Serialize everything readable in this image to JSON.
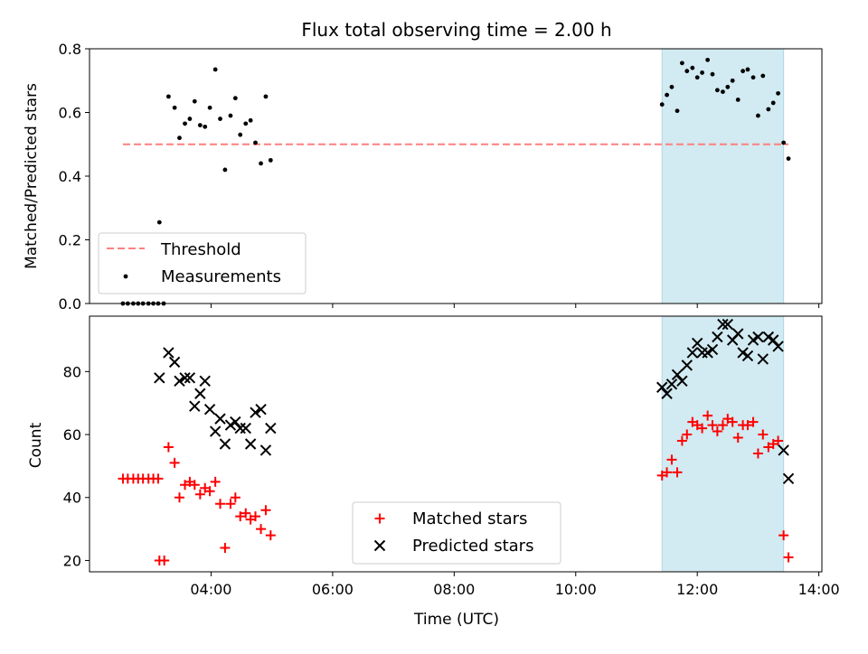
{
  "figure": {
    "title": "Flux total observing time = 2.00 h",
    "xlabel": "Time (UTC)",
    "highlight_color": "#add8e6",
    "threshold_color": "#ff7f7f",
    "matched_color": "#ff0000",
    "predicted_color": "#000000"
  },
  "chart_data": [
    {
      "type": "scatter",
      "panel": "top",
      "title": "Flux total observing time = 2.00 h",
      "xlabel": "",
      "ylabel": "Matched/Predicted stars",
      "x_unit": "hours UTC",
      "xlim": [
        2.0,
        14.05
      ],
      "ylim": [
        0.0,
        0.8
      ],
      "x_ticks": [
        4,
        6,
        8,
        10,
        12,
        14
      ],
      "y_ticks": [
        0.0,
        0.2,
        0.4,
        0.6,
        0.8
      ],
      "y_tick_labels": [
        "0.0",
        "0.2",
        "0.4",
        "0.6",
        "0.8"
      ],
      "highlight_span": [
        11.42,
        13.42
      ],
      "legend": {
        "position": "lower-left",
        "entries": [
          "Threshold",
          "Measurements"
        ]
      },
      "series": [
        {
          "name": "Threshold",
          "kind": "hline",
          "y": 0.5,
          "x_range": [
            2.55,
            13.5
          ],
          "color": "#ff7f7f",
          "style": "dashed"
        },
        {
          "name": "Measurements",
          "kind": "scatter",
          "marker": "dot",
          "color": "#000000",
          "points": [
            [
              2.55,
              0.0
            ],
            [
              2.63,
              0.0
            ],
            [
              2.72,
              0.0
            ],
            [
              2.8,
              0.0
            ],
            [
              2.88,
              0.0
            ],
            [
              2.97,
              0.0
            ],
            [
              3.05,
              0.0
            ],
            [
              3.13,
              0.0
            ],
            [
              3.22,
              0.0
            ],
            [
              3.15,
              0.255
            ],
            [
              3.3,
              0.65
            ],
            [
              3.4,
              0.615
            ],
            [
              3.48,
              0.52
            ],
            [
              3.57,
              0.565
            ],
            [
              3.65,
              0.58
            ],
            [
              3.73,
              0.635
            ],
            [
              3.82,
              0.56
            ],
            [
              3.9,
              0.555
            ],
            [
              3.98,
              0.615
            ],
            [
              4.07,
              0.735
            ],
            [
              4.15,
              0.58
            ],
            [
              4.23,
              0.42
            ],
            [
              4.32,
              0.59
            ],
            [
              4.4,
              0.645
            ],
            [
              4.48,
              0.53
            ],
            [
              4.57,
              0.565
            ],
            [
              4.65,
              0.575
            ],
            [
              4.73,
              0.505
            ],
            [
              4.82,
              0.44
            ],
            [
              4.9,
              0.65
            ],
            [
              4.98,
              0.45
            ],
            [
              11.42,
              0.625
            ],
            [
              11.5,
              0.655
            ],
            [
              11.58,
              0.68
            ],
            [
              11.67,
              0.605
            ],
            [
              11.75,
              0.755
            ],
            [
              11.83,
              0.73
            ],
            [
              11.92,
              0.74
            ],
            [
              12.0,
              0.71
            ],
            [
              12.08,
              0.725
            ],
            [
              12.17,
              0.765
            ],
            [
              12.25,
              0.72
            ],
            [
              12.33,
              0.67
            ],
            [
              12.42,
              0.665
            ],
            [
              12.5,
              0.68
            ],
            [
              12.58,
              0.7
            ],
            [
              12.67,
              0.64
            ],
            [
              12.75,
              0.73
            ],
            [
              12.83,
              0.735
            ],
            [
              12.92,
              0.71
            ],
            [
              13.0,
              0.59
            ],
            [
              13.08,
              0.715
            ],
            [
              13.17,
              0.61
            ],
            [
              13.25,
              0.63
            ],
            [
              13.33,
              0.66
            ],
            [
              13.42,
              0.505
            ],
            [
              13.5,
              0.455
            ]
          ]
        }
      ]
    },
    {
      "type": "scatter",
      "panel": "bottom",
      "title": "",
      "xlabel": "Time (UTC)",
      "ylabel": "Count",
      "x_unit": "hours UTC",
      "xlim": [
        2.0,
        14.05
      ],
      "ylim": [
        16.4,
        97.6
      ],
      "x_ticks": [
        4,
        6,
        8,
        10,
        12,
        14
      ],
      "x_tick_labels": [
        "04:00",
        "06:00",
        "08:00",
        "10:00",
        "12:00",
        "14:00"
      ],
      "y_ticks": [
        20,
        40,
        60,
        80
      ],
      "y_tick_labels": [
        "20",
        "40",
        "60",
        "80"
      ],
      "highlight_span": [
        11.42,
        13.42
      ],
      "legend": {
        "position": "lower-center",
        "entries": [
          "Matched stars",
          "Predicted stars"
        ]
      },
      "series": [
        {
          "name": "Matched stars",
          "kind": "scatter",
          "marker": "plus",
          "color": "#ff0000",
          "points": [
            [
              2.55,
              46
            ],
            [
              2.63,
              46
            ],
            [
              2.72,
              46
            ],
            [
              2.8,
              46
            ],
            [
              2.88,
              46
            ],
            [
              2.97,
              46
            ],
            [
              3.05,
              46
            ],
            [
              3.13,
              46
            ],
            [
              3.15,
              20
            ],
            [
              3.23,
              20
            ],
            [
              3.3,
              56
            ],
            [
              3.4,
              51
            ],
            [
              3.48,
              40
            ],
            [
              3.57,
              44
            ],
            [
              3.65,
              45
            ],
            [
              3.73,
              44
            ],
            [
              3.82,
              41
            ],
            [
              3.9,
              43
            ],
            [
              3.98,
              42
            ],
            [
              4.07,
              45
            ],
            [
              4.15,
              38
            ],
            [
              4.23,
              24
            ],
            [
              4.32,
              38
            ],
            [
              4.4,
              40
            ],
            [
              4.48,
              34
            ],
            [
              4.57,
              35
            ],
            [
              4.65,
              33
            ],
            [
              4.73,
              34
            ],
            [
              4.82,
              30
            ],
            [
              4.9,
              36
            ],
            [
              4.98,
              28
            ],
            [
              11.42,
              47
            ],
            [
              11.5,
              48
            ],
            [
              11.58,
              52
            ],
            [
              11.67,
              48
            ],
            [
              11.75,
              58
            ],
            [
              11.83,
              60
            ],
            [
              11.92,
              64
            ],
            [
              12.0,
              63
            ],
            [
              12.08,
              62
            ],
            [
              12.17,
              66
            ],
            [
              12.25,
              63
            ],
            [
              12.33,
              61
            ],
            [
              12.42,
              63
            ],
            [
              12.5,
              65
            ],
            [
              12.58,
              64
            ],
            [
              12.67,
              59
            ],
            [
              12.75,
              63
            ],
            [
              12.83,
              63
            ],
            [
              12.92,
              64
            ],
            [
              13.0,
              54
            ],
            [
              13.08,
              60
            ],
            [
              13.17,
              56
            ],
            [
              13.25,
              57
            ],
            [
              13.33,
              58
            ],
            [
              13.42,
              28
            ],
            [
              13.5,
              21
            ]
          ]
        },
        {
          "name": "Predicted stars",
          "kind": "scatter",
          "marker": "cross",
          "color": "#000000",
          "points": [
            [
              3.15,
              78
            ],
            [
              3.3,
              86
            ],
            [
              3.4,
              83
            ],
            [
              3.48,
              77
            ],
            [
              3.57,
              78
            ],
            [
              3.65,
              78
            ],
            [
              3.73,
              69
            ],
            [
              3.82,
              73
            ],
            [
              3.9,
              77
            ],
            [
              3.98,
              68
            ],
            [
              4.07,
              61
            ],
            [
              4.15,
              65
            ],
            [
              4.23,
              57
            ],
            [
              4.32,
              63
            ],
            [
              4.4,
              64
            ],
            [
              4.48,
              62
            ],
            [
              4.57,
              62
            ],
            [
              4.65,
              57
            ],
            [
              4.73,
              67
            ],
            [
              4.82,
              68
            ],
            [
              4.9,
              55
            ],
            [
              4.98,
              62
            ],
            [
              11.42,
              75
            ],
            [
              11.5,
              73
            ],
            [
              11.58,
              76
            ],
            [
              11.67,
              79
            ],
            [
              11.75,
              77
            ],
            [
              11.83,
              82
            ],
            [
              11.92,
              86
            ],
            [
              12.0,
              89
            ],
            [
              12.08,
              86
            ],
            [
              12.17,
              86
            ],
            [
              12.25,
              87
            ],
            [
              12.33,
              91
            ],
            [
              12.42,
              95
            ],
            [
              12.5,
              95
            ],
            [
              12.58,
              90
            ],
            [
              12.67,
              92
            ],
            [
              12.75,
              86
            ],
            [
              12.83,
              85
            ],
            [
              12.92,
              90
            ],
            [
              13.0,
              91
            ],
            [
              13.08,
              84
            ],
            [
              13.17,
              91
            ],
            [
              13.25,
              90
            ],
            [
              13.33,
              88
            ],
            [
              13.42,
              55
            ],
            [
              13.5,
              46
            ]
          ]
        }
      ]
    }
  ]
}
